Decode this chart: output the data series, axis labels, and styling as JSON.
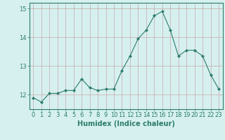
{
  "x": [
    0,
    1,
    2,
    3,
    4,
    5,
    6,
    7,
    8,
    9,
    10,
    11,
    12,
    13,
    14,
    15,
    16,
    17,
    18,
    19,
    20,
    21,
    22,
    23
  ],
  "y": [
    11.9,
    11.75,
    12.05,
    12.05,
    12.15,
    12.15,
    12.55,
    12.25,
    12.15,
    12.2,
    12.2,
    12.85,
    13.35,
    13.95,
    14.25,
    14.75,
    14.9,
    14.25,
    13.35,
    13.55,
    13.55,
    13.35,
    12.7,
    12.2
  ],
  "line_color": "#2d7d6b",
  "marker": "D",
  "marker_size": 2.0,
  "bg_color": "#d6f0f0",
  "grid_color": "#c8a8a8",
  "xlabel": "Humidex (Indice chaleur)",
  "ylim": [
    11.5,
    15.2
  ],
  "xlim": [
    -0.5,
    23.5
  ],
  "yticks": [
    12,
    13,
    14,
    15
  ],
  "xticks": [
    0,
    1,
    2,
    3,
    4,
    5,
    6,
    7,
    8,
    9,
    10,
    11,
    12,
    13,
    14,
    15,
    16,
    17,
    18,
    19,
    20,
    21,
    22,
    23
  ],
  "tick_fontsize": 6,
  "xlabel_fontsize": 7
}
